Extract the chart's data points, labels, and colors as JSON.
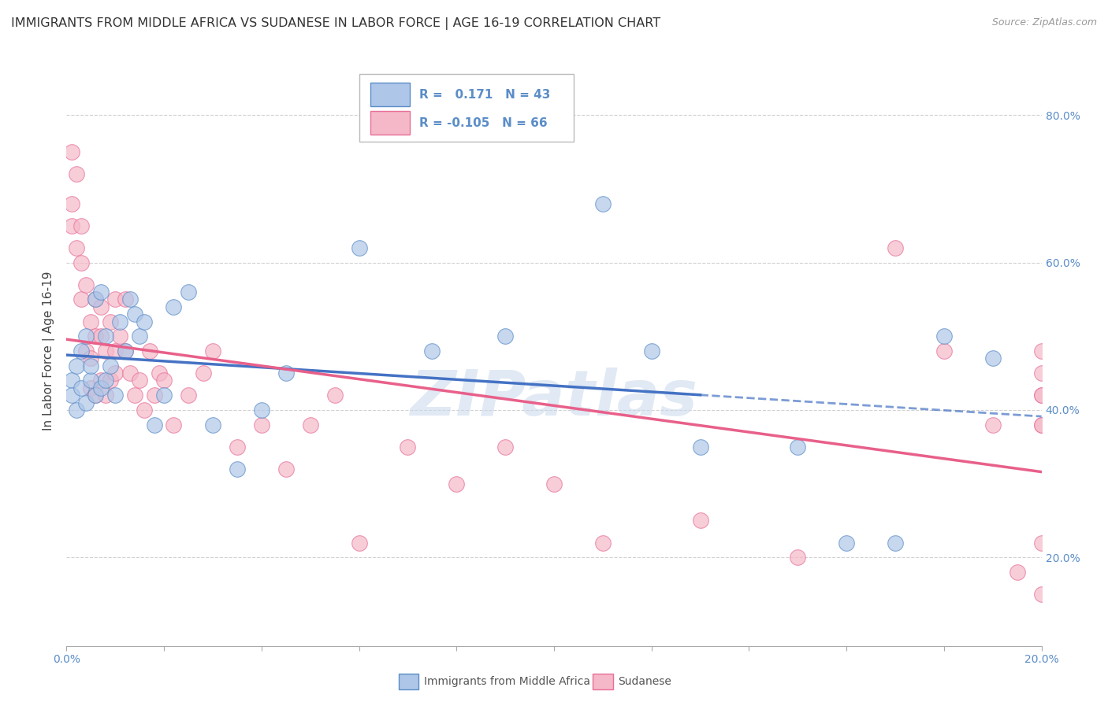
{
  "title": "IMMIGRANTS FROM MIDDLE AFRICA VS SUDANESE IN LABOR FORCE | AGE 16-19 CORRELATION CHART",
  "source": "Source: ZipAtlas.com",
  "ylabel": "In Labor Force | Age 16-19",
  "xlim": [
    0.0,
    0.2
  ],
  "ylim": [
    0.08,
    0.88
  ],
  "xticks": [
    0.0,
    0.02,
    0.04,
    0.06,
    0.08,
    0.1,
    0.12,
    0.14,
    0.16,
    0.18,
    0.2
  ],
  "yticks": [
    0.2,
    0.4,
    0.6,
    0.8
  ],
  "xticklabels": [
    "0.0%",
    "",
    "",
    "",
    "",
    "",
    "",
    "",
    "",
    "",
    "20.0%"
  ],
  "yticklabels": [
    "20.0%",
    "40.0%",
    "60.0%",
    "80.0%"
  ],
  "blue_color": "#aec6e8",
  "pink_color": "#f5b8c8",
  "blue_edge_color": "#5b8dc8",
  "pink_edge_color": "#e87098",
  "blue_line_color": "#4472c4",
  "pink_line_color": "#e8608a",
  "blue_R": 0.171,
  "blue_N": 43,
  "pink_R": -0.105,
  "pink_N": 66,
  "watermark": "ZIPatlas",
  "watermark_color": "#c8d8ec",
  "background_color": "#ffffff",
  "grid_color": "#cccccc",
  "blue_scatter_x": [
    0.001,
    0.001,
    0.002,
    0.002,
    0.003,
    0.003,
    0.004,
    0.004,
    0.005,
    0.005,
    0.006,
    0.006,
    0.007,
    0.007,
    0.008,
    0.008,
    0.009,
    0.01,
    0.011,
    0.012,
    0.013,
    0.014,
    0.015,
    0.016,
    0.018,
    0.02,
    0.022,
    0.025,
    0.03,
    0.035,
    0.04,
    0.045,
    0.06,
    0.075,
    0.09,
    0.11,
    0.12,
    0.13,
    0.15,
    0.16,
    0.17,
    0.18,
    0.19
  ],
  "blue_scatter_y": [
    0.44,
    0.42,
    0.46,
    0.4,
    0.43,
    0.48,
    0.41,
    0.5,
    0.44,
    0.46,
    0.42,
    0.55,
    0.43,
    0.56,
    0.44,
    0.5,
    0.46,
    0.42,
    0.52,
    0.48,
    0.55,
    0.53,
    0.5,
    0.52,
    0.38,
    0.42,
    0.54,
    0.56,
    0.38,
    0.32,
    0.4,
    0.45,
    0.62,
    0.48,
    0.5,
    0.68,
    0.48,
    0.35,
    0.35,
    0.22,
    0.22,
    0.5,
    0.47
  ],
  "pink_scatter_x": [
    0.001,
    0.001,
    0.001,
    0.002,
    0.002,
    0.003,
    0.003,
    0.003,
    0.004,
    0.004,
    0.005,
    0.005,
    0.005,
    0.006,
    0.006,
    0.006,
    0.007,
    0.007,
    0.007,
    0.008,
    0.008,
    0.009,
    0.009,
    0.01,
    0.01,
    0.01,
    0.011,
    0.012,
    0.012,
    0.013,
    0.014,
    0.015,
    0.016,
    0.017,
    0.018,
    0.019,
    0.02,
    0.022,
    0.025,
    0.028,
    0.03,
    0.035,
    0.04,
    0.045,
    0.05,
    0.055,
    0.06,
    0.07,
    0.08,
    0.09,
    0.1,
    0.11,
    0.13,
    0.15,
    0.17,
    0.18,
    0.19,
    0.195,
    0.2,
    0.2,
    0.2,
    0.2,
    0.2,
    0.2,
    0.2,
    0.2
  ],
  "pink_scatter_y": [
    0.75,
    0.68,
    0.65,
    0.72,
    0.62,
    0.65,
    0.6,
    0.55,
    0.57,
    0.48,
    0.52,
    0.47,
    0.43,
    0.55,
    0.5,
    0.42,
    0.54,
    0.5,
    0.44,
    0.48,
    0.42,
    0.52,
    0.44,
    0.55,
    0.45,
    0.48,
    0.5,
    0.55,
    0.48,
    0.45,
    0.42,
    0.44,
    0.4,
    0.48,
    0.42,
    0.45,
    0.44,
    0.38,
    0.42,
    0.45,
    0.48,
    0.35,
    0.38,
    0.32,
    0.38,
    0.42,
    0.22,
    0.35,
    0.3,
    0.35,
    0.3,
    0.22,
    0.25,
    0.2,
    0.62,
    0.48,
    0.38,
    0.18,
    0.22,
    0.15,
    0.38,
    0.42,
    0.45,
    0.48,
    0.38,
    0.42
  ]
}
